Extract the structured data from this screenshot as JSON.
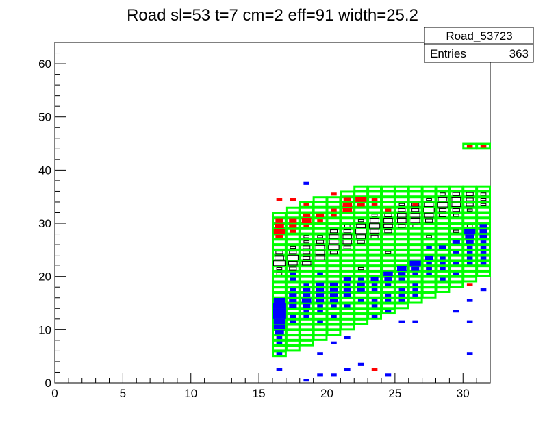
{
  "chart_data": {
    "type": "heatmap",
    "title": "Road sl=53 t=7 cm=2 eff=91 width=25.2",
    "xlabel": "",
    "ylabel": "",
    "xlim": [
      0,
      32
    ],
    "ylim": [
      0,
      64
    ],
    "x_ticks": [
      0,
      5,
      10,
      15,
      20,
      25,
      30
    ],
    "y_ticks": [
      0,
      10,
      20,
      30,
      40,
      50,
      60
    ],
    "stats_box": {
      "name": "Road_53723",
      "entries_label": "Entries",
      "entries_value": "363"
    },
    "colors": {
      "black": "#000000",
      "red": "#ff0000",
      "blue": "#0000ff",
      "green": "#00ff00"
    },
    "road_envelope": [
      {
        "x": 16,
        "ymin": 5,
        "ymax": 31
      },
      {
        "x": 17,
        "ymin": 6,
        "ymax": 32
      },
      {
        "x": 18,
        "ymin": 7,
        "ymax": 33
      },
      {
        "x": 19,
        "ymin": 8,
        "ymax": 34
      },
      {
        "x": 20,
        "ymin": 9,
        "ymax": 34
      },
      {
        "x": 21,
        "ymin": 10,
        "ymax": 35
      },
      {
        "x": 22,
        "ymin": 11,
        "ymax": 36
      },
      {
        "x": 23,
        "ymin": 12,
        "ymax": 36
      },
      {
        "x": 24,
        "ymin": 13,
        "ymax": 36
      },
      {
        "x": 25,
        "ymin": 14,
        "ymax": 36
      },
      {
        "x": 26,
        "ymin": 15,
        "ymax": 36
      },
      {
        "x": 27,
        "ymin": 16,
        "ymax": 36
      },
      {
        "x": 28,
        "ymin": 17,
        "ymax": 36
      },
      {
        "x": 29,
        "ymin": 18,
        "ymax": 36
      },
      {
        "x": 30,
        "ymin": 19,
        "ymax": 36
      },
      {
        "x": 31,
        "ymin": 20,
        "ymax": 36
      }
    ],
    "road_extra_cells": [
      {
        "x": 30,
        "y": 44
      },
      {
        "x": 31,
        "y": 44
      }
    ],
    "black_cells": [
      [
        16,
        22,
        5
      ],
      [
        16,
        23,
        3
      ],
      [
        16,
        24,
        2
      ],
      [
        16,
        21,
        1
      ],
      [
        16,
        20,
        1
      ],
      [
        17,
        21,
        2
      ],
      [
        17,
        22,
        3
      ],
      [
        17,
        23,
        4
      ],
      [
        17,
        24,
        2
      ],
      [
        17,
        25,
        1
      ],
      [
        18,
        22,
        3
      ],
      [
        18,
        23,
        2
      ],
      [
        18,
        24,
        2
      ],
      [
        18,
        25,
        2
      ],
      [
        18,
        26,
        1
      ],
      [
        18,
        27,
        1
      ],
      [
        19,
        23,
        3
      ],
      [
        19,
        24,
        3
      ],
      [
        19,
        25,
        3
      ],
      [
        19,
        26,
        2
      ],
      [
        19,
        27,
        1
      ],
      [
        20,
        24,
        2
      ],
      [
        20,
        25,
        4
      ],
      [
        20,
        26,
        3
      ],
      [
        20,
        27,
        3
      ],
      [
        20,
        28,
        2
      ],
      [
        21,
        25,
        2
      ],
      [
        21,
        26,
        3
      ],
      [
        21,
        27,
        3
      ],
      [
        21,
        28,
        2
      ],
      [
        21,
        29,
        1
      ],
      [
        22,
        26,
        2
      ],
      [
        22,
        27,
        3
      ],
      [
        22,
        28,
        4
      ],
      [
        22,
        29,
        3
      ],
      [
        22,
        30,
        1
      ],
      [
        23,
        27,
        2
      ],
      [
        23,
        28,
        3
      ],
      [
        23,
        29,
        4
      ],
      [
        23,
        30,
        3
      ],
      [
        23,
        31,
        1
      ],
      [
        24,
        28,
        2
      ],
      [
        24,
        29,
        3
      ],
      [
        24,
        30,
        3
      ],
      [
        24,
        31,
        2
      ],
      [
        24,
        32,
        1
      ],
      [
        25,
        29,
        2
      ],
      [
        25,
        30,
        3
      ],
      [
        25,
        31,
        3
      ],
      [
        25,
        32,
        2
      ],
      [
        25,
        33,
        1
      ],
      [
        26,
        29,
        1
      ],
      [
        26,
        30,
        3
      ],
      [
        26,
        31,
        3
      ],
      [
        26,
        32,
        2
      ],
      [
        26,
        33,
        2
      ],
      [
        27,
        30,
        2
      ],
      [
        27,
        31,
        3
      ],
      [
        27,
        32,
        4
      ],
      [
        27,
        33,
        3
      ],
      [
        27,
        34,
        1
      ],
      [
        28,
        31,
        2
      ],
      [
        28,
        32,
        2
      ],
      [
        28,
        33,
        4
      ],
      [
        28,
        34,
        3
      ],
      [
        28,
        35,
        1
      ],
      [
        29,
        31,
        1
      ],
      [
        29,
        32,
        2
      ],
      [
        29,
        33,
        3
      ],
      [
        29,
        34,
        3
      ],
      [
        29,
        35,
        2
      ],
      [
        30,
        32,
        1
      ],
      [
        30,
        33,
        2
      ],
      [
        30,
        34,
        2
      ],
      [
        30,
        35,
        2
      ],
      [
        31,
        33,
        1
      ],
      [
        31,
        34,
        1
      ],
      [
        31,
        35,
        1
      ],
      [
        22,
        21,
        1
      ],
      [
        24,
        24,
        1
      ],
      [
        27,
        27,
        1
      ],
      [
        29,
        28,
        1
      ],
      [
        30,
        29,
        1
      ]
    ],
    "red_cells": [
      [
        16,
        28,
        4
      ],
      [
        16,
        29,
        3
      ],
      [
        16,
        30,
        2
      ],
      [
        16,
        27,
        2
      ],
      [
        16,
        34,
        1
      ],
      [
        17,
        29,
        2
      ],
      [
        17,
        30,
        2
      ],
      [
        17,
        28,
        1
      ],
      [
        17,
        34,
        1
      ],
      [
        18,
        30,
        3
      ],
      [
        18,
        31,
        2
      ],
      [
        18,
        29,
        1
      ],
      [
        18,
        33,
        1
      ],
      [
        19,
        31,
        2
      ],
      [
        19,
        30,
        1
      ],
      [
        20,
        31,
        1
      ],
      [
        20,
        32,
        1
      ],
      [
        20,
        35,
        1
      ],
      [
        21,
        32,
        3
      ],
      [
        21,
        33,
        3
      ],
      [
        21,
        34,
        2
      ],
      [
        22,
        34,
        4
      ],
      [
        22,
        33,
        2
      ],
      [
        23,
        34,
        1
      ],
      [
        23,
        33,
        1
      ],
      [
        23,
        2,
        1
      ],
      [
        24,
        32,
        1
      ],
      [
        26,
        33,
        1
      ],
      [
        26,
        22,
        1
      ],
      [
        27,
        21,
        1
      ],
      [
        30,
        44,
        1
      ],
      [
        30,
        18,
        1
      ],
      [
        31,
        44,
        1
      ],
      [
        31,
        28,
        1
      ]
    ],
    "blue_cells": [
      [
        16,
        15,
        4
      ],
      [
        16,
        14,
        5
      ],
      [
        16,
        13,
        5
      ],
      [
        16,
        12,
        5
      ],
      [
        16,
        11,
        4
      ],
      [
        16,
        10,
        4
      ],
      [
        16,
        9,
        3
      ],
      [
        16,
        8,
        1
      ],
      [
        16,
        7,
        1
      ],
      [
        16,
        5,
        1
      ],
      [
        16,
        2,
        1
      ],
      [
        17,
        16,
        2
      ],
      [
        17,
        15,
        2
      ],
      [
        17,
        14,
        2
      ],
      [
        17,
        12,
        1
      ],
      [
        17,
        11,
        1
      ],
      [
        17,
        17,
        1
      ],
      [
        17,
        19,
        1
      ],
      [
        17,
        20,
        1
      ],
      [
        18,
        17,
        2
      ],
      [
        18,
        16,
        2
      ],
      [
        18,
        15,
        3
      ],
      [
        18,
        14,
        2
      ],
      [
        18,
        13,
        1
      ],
      [
        18,
        12,
        1
      ],
      [
        18,
        18,
        1
      ],
      [
        18,
        0,
        1
      ],
      [
        18,
        37,
        1
      ],
      [
        19,
        18,
        2
      ],
      [
        19,
        17,
        2
      ],
      [
        19,
        16,
        2
      ],
      [
        19,
        15,
        2
      ],
      [
        19,
        14,
        1
      ],
      [
        19,
        13,
        1
      ],
      [
        19,
        11,
        1
      ],
      [
        19,
        5,
        1
      ],
      [
        19,
        1,
        1
      ],
      [
        19,
        20,
        1
      ],
      [
        20,
        18,
        2
      ],
      [
        20,
        17,
        2
      ],
      [
        20,
        16,
        2
      ],
      [
        20,
        15,
        2
      ],
      [
        20,
        14,
        1
      ],
      [
        20,
        12,
        1
      ],
      [
        20,
        7,
        1
      ],
      [
        20,
        1,
        1
      ],
      [
        21,
        19,
        2
      ],
      [
        21,
        17,
        2
      ],
      [
        21,
        16,
        2
      ],
      [
        21,
        18,
        1
      ],
      [
        21,
        14,
        1
      ],
      [
        21,
        8,
        1
      ],
      [
        21,
        2,
        1
      ],
      [
        22,
        17,
        2
      ],
      [
        22,
        18,
        2
      ],
      [
        22,
        19,
        1
      ],
      [
        22,
        15,
        1
      ],
      [
        22,
        3,
        1
      ],
      [
        23,
        19,
        2
      ],
      [
        23,
        18,
        1
      ],
      [
        23,
        17,
        1
      ],
      [
        23,
        15,
        1
      ],
      [
        23,
        14,
        1
      ],
      [
        23,
        12,
        1
      ],
      [
        24,
        20,
        3
      ],
      [
        24,
        19,
        2
      ],
      [
        24,
        18,
        1
      ],
      [
        24,
        16,
        1
      ],
      [
        24,
        15,
        1
      ],
      [
        24,
        13,
        1
      ],
      [
        24,
        1,
        1
      ],
      [
        25,
        21,
        3
      ],
      [
        25,
        20,
        2
      ],
      [
        25,
        19,
        1
      ],
      [
        25,
        17,
        1
      ],
      [
        25,
        16,
        1
      ],
      [
        25,
        15,
        1
      ],
      [
        25,
        11,
        1
      ],
      [
        26,
        22,
        4
      ],
      [
        26,
        21,
        2
      ],
      [
        26,
        20,
        1
      ],
      [
        26,
        18,
        1
      ],
      [
        26,
        17,
        1
      ],
      [
        26,
        16,
        1
      ],
      [
        26,
        11,
        1
      ],
      [
        27,
        23,
        2
      ],
      [
        27,
        22,
        1
      ],
      [
        27,
        21,
        1
      ],
      [
        27,
        20,
        1
      ],
      [
        27,
        25,
        1
      ],
      [
        28,
        25,
        2
      ],
      [
        28,
        23,
        1
      ],
      [
        28,
        22,
        1
      ],
      [
        28,
        21,
        1
      ],
      [
        28,
        19,
        1
      ],
      [
        29,
        26,
        2
      ],
      [
        29,
        24,
        1
      ],
      [
        29,
        22,
        1
      ],
      [
        29,
        20,
        1
      ],
      [
        29,
        13,
        1
      ],
      [
        30,
        28,
        4
      ],
      [
        30,
        27,
        3
      ],
      [
        30,
        26,
        2
      ],
      [
        30,
        25,
        1
      ],
      [
        30,
        24,
        1
      ],
      [
        30,
        23,
        1
      ],
      [
        30,
        22,
        1
      ],
      [
        30,
        15,
        1
      ],
      [
        30,
        11,
        1
      ],
      [
        30,
        5,
        1
      ],
      [
        31,
        29,
        2
      ],
      [
        31,
        28,
        2
      ],
      [
        31,
        27,
        2
      ],
      [
        31,
        26,
        1
      ],
      [
        31,
        25,
        1
      ],
      [
        31,
        24,
        1
      ],
      [
        31,
        23,
        1
      ],
      [
        31,
        22,
        1
      ],
      [
        31,
        17,
        1
      ]
    ]
  }
}
